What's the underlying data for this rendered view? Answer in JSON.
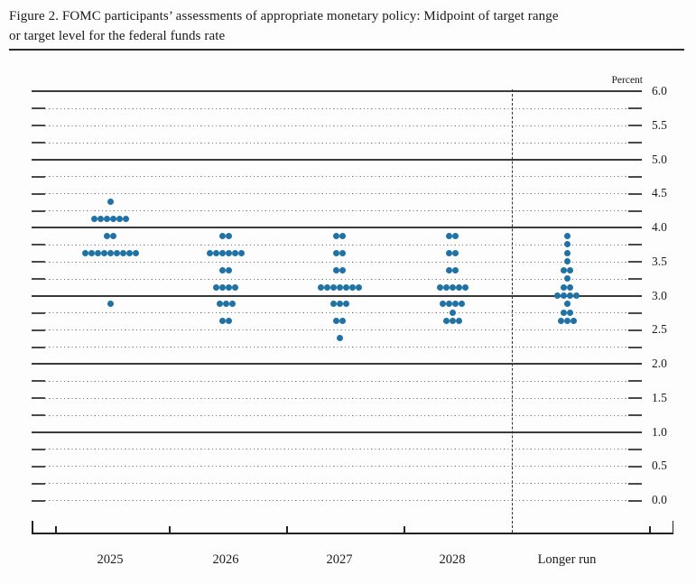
{
  "header": {
    "title_line1": "Figure 2. FOMC participants’ assessments of appropriate monetary policy: Midpoint of target range",
    "title_line2": "or target level for the federal funds rate"
  },
  "chart_data": {
    "type": "scatter",
    "title": "FOMC participants’ assessments of appropriate monetary policy: Midpoint of target range or target level for the federal funds rate",
    "ylabel": "Percent",
    "xlabel": "",
    "ylim": [
      0.0,
      6.0
    ],
    "grid_step": 0.25,
    "label_step": 0.5,
    "grid_on": true,
    "solid_line_levels": [
      6.0,
      5.0,
      4.0,
      3.0,
      2.0,
      1.0
    ],
    "axis_tick_labels": [
      "6.0",
      "5.5",
      "5.0",
      "4.5",
      "4.0",
      "3.5",
      "3.0",
      "2.5",
      "2.0",
      "1.5",
      "1.0",
      "0.5",
      "0.0"
    ],
    "categories": [
      "2025",
      "2026",
      "2027",
      "2028",
      "Longer run"
    ],
    "series": [
      {
        "name": "2025",
        "dots": {
          "4.375": 1,
          "4.125": 6,
          "3.875": 2,
          "3.625": 9,
          "2.875": 1
        }
      },
      {
        "name": "2026",
        "dots": {
          "3.875": 2,
          "3.625": 6,
          "3.375": 2,
          "3.125": 4,
          "2.875": 3,
          "2.625": 2
        }
      },
      {
        "name": "2027",
        "dots": {
          "3.875": 2,
          "3.625": 2,
          "3.375": 2,
          "3.125": 7,
          "2.875": 3,
          "2.625": 2,
          "2.375": 1
        }
      },
      {
        "name": "2028",
        "dots": {
          "3.875": 2,
          "3.625": 2,
          "3.375": 2,
          "3.125": 5,
          "2.875": 4,
          "2.75": 1,
          "2.625": 3
        }
      },
      {
        "name": "Longer run",
        "dots": {
          "3.875": 1,
          "3.75": 1,
          "3.625": 1,
          "3.5": 1,
          "3.375": 2,
          "3.25": 1,
          "3.125": 2,
          "3.0": 4,
          "2.875": 1,
          "2.75": 2,
          "2.625": 3
        }
      }
    ],
    "participants_per_year": 19,
    "dot_color": "#1f72a5"
  }
}
